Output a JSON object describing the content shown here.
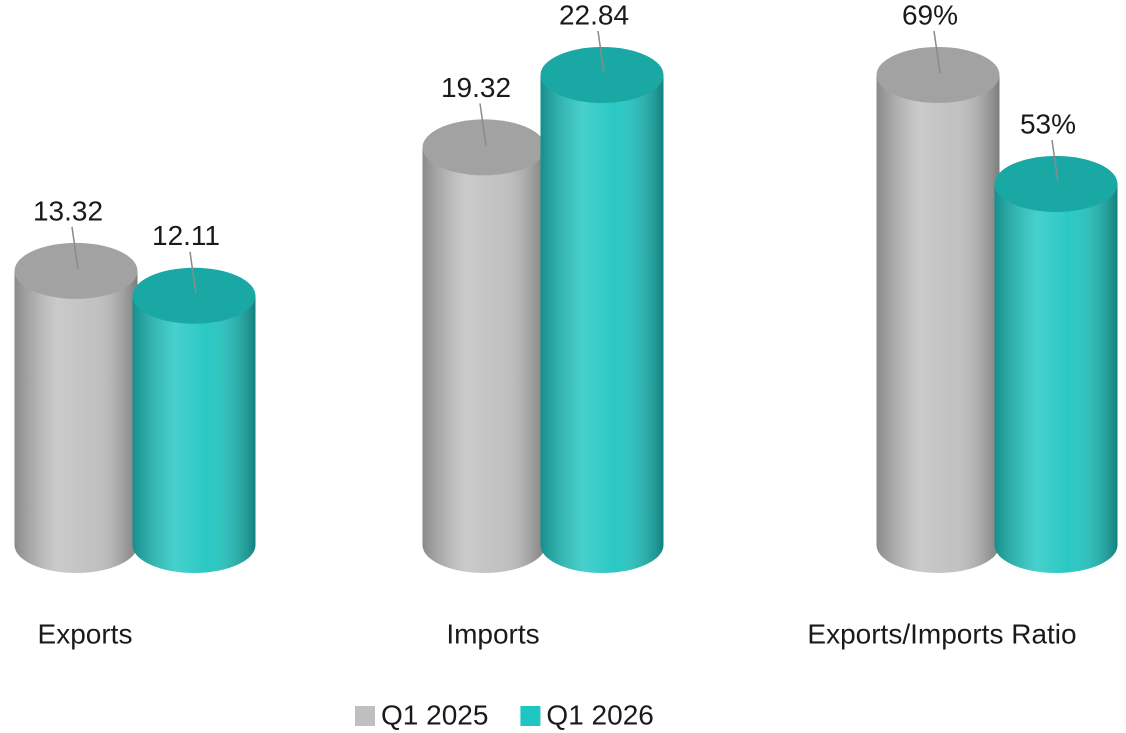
{
  "chart_data": {
    "type": "bar",
    "categories": [
      "Exports",
      "Imports",
      "Exports/Imports Ratio"
    ],
    "series": [
      {
        "name": "Q1 2025",
        "color": "#bfbfbf",
        "values": [
          13.32,
          19.32,
          69
        ],
        "value_labels": [
          "13.32",
          "19.32",
          "69%"
        ]
      },
      {
        "name": "Q1 2026",
        "color": "#1fc6c1",
        "values": [
          12.11,
          22.84,
          53
        ],
        "value_labels": [
          "12.11",
          "22.84",
          "53%"
        ]
      }
    ],
    "legend": "bottom"
  }
}
